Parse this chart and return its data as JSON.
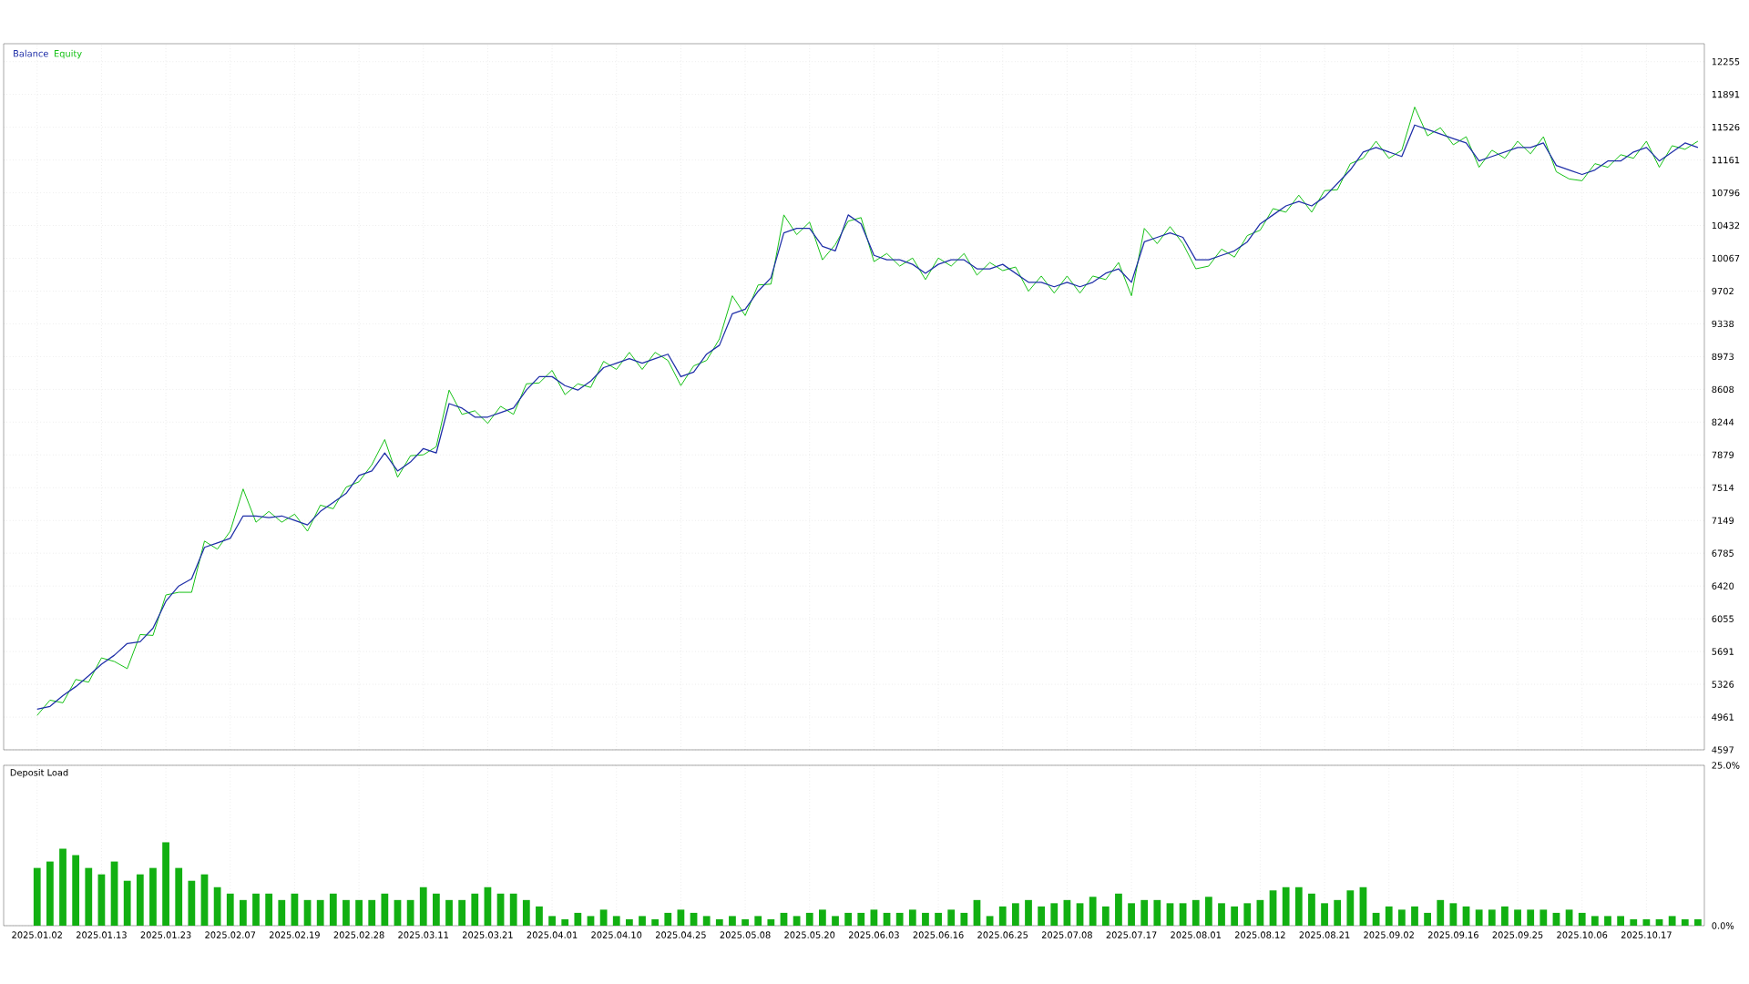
{
  "chart_data": [
    {
      "type": "line",
      "categories": [
        "2025.01.02",
        null,
        null,
        null,
        null,
        "2025.01.13",
        null,
        null,
        null,
        null,
        "2025.01.23",
        null,
        null,
        null,
        null,
        "2025.02.07",
        null,
        null,
        null,
        null,
        "2025.02.19",
        null,
        null,
        null,
        null,
        "2025.02.28",
        null,
        null,
        null,
        null,
        "2025.03.11",
        null,
        null,
        null,
        null,
        "2025.03.21",
        null,
        null,
        null,
        null,
        "2025.04.01",
        null,
        null,
        null,
        null,
        "2025.04.10",
        null,
        null,
        null,
        null,
        "2025.04.25",
        null,
        null,
        null,
        null,
        "2025.05.08",
        null,
        null,
        null,
        null,
        "2025.05.20",
        null,
        null,
        null,
        null,
        "2025.06.03",
        null,
        null,
        null,
        null,
        "2025.06.16",
        null,
        null,
        null,
        null,
        "2025.06.25",
        null,
        null,
        null,
        null,
        "2025.07.08",
        null,
        null,
        null,
        null,
        "2025.07.17",
        null,
        null,
        null,
        null,
        "2025.08.01",
        null,
        null,
        null,
        null,
        "2025.08.12",
        null,
        null,
        null,
        null,
        "2025.08.21",
        null,
        null,
        null,
        null,
        "2025.09.02",
        null,
        null,
        null,
        null,
        "2025.09.16",
        null,
        null,
        null,
        null,
        "2025.09.25",
        null,
        null,
        null,
        null,
        "2025.10.06",
        null,
        null,
        null,
        null,
        "2025.10.17",
        null,
        null,
        null,
        null
      ],
      "series": [
        {
          "name": "Balance",
          "color": "#1f2fa8",
          "values": [
            5050,
            5080,
            5200,
            5300,
            5420,
            5550,
            5650,
            5780,
            5800,
            5950,
            6250,
            6420,
            6500,
            6850,
            6900,
            6950,
            7200,
            7200,
            7180,
            7200,
            7150,
            7100,
            7250,
            7350,
            7450,
            7650,
            7700,
            7900,
            7700,
            7800,
            7950,
            7900,
            8450,
            8400,
            8300,
            8300,
            8350,
            8400,
            8600,
            8750,
            8750,
            8650,
            8600,
            8700,
            8850,
            8900,
            8950,
            8900,
            8950,
            9000,
            8750,
            8800,
            9000,
            9100,
            9450,
            9500,
            9700,
            9850,
            10350,
            10400,
            10400,
            10200,
            10150,
            10550,
            10450,
            10100,
            10050,
            10050,
            10000,
            9900,
            10000,
            10050,
            10050,
            9950,
            9950,
            10000,
            9900,
            9800,
            9800,
            9750,
            9800,
            9750,
            9800,
            9900,
            9950,
            9800,
            10250,
            10300,
            10350,
            10300,
            10050,
            10050,
            10100,
            10150,
            10250,
            10450,
            10550,
            10650,
            10700,
            10650,
            10750,
            10900,
            11050,
            11250,
            11300,
            11250,
            11200,
            11550,
            11500,
            11450,
            11400,
            11350,
            11150,
            11200,
            11250,
            11300,
            11300,
            11350,
            11100,
            11050,
            11000,
            11050,
            11150,
            11150,
            11250,
            11300,
            11150,
            11250,
            11350,
            11300
          ]
        },
        {
          "name": "Equity",
          "color": "#12c012",
          "values": [
            4980,
            5150,
            5120,
            5380,
            5350,
            5620,
            5580,
            5500,
            5880,
            5870,
            6320,
            6350,
            6350,
            6920,
            6830,
            7030,
            7500,
            7130,
            7250,
            7130,
            7220,
            7030,
            7320,
            7280,
            7520,
            7580,
            7770,
            8050,
            7630,
            7870,
            7880,
            7970,
            8600,
            8330,
            8370,
            8230,
            8420,
            8330,
            8670,
            8680,
            8820,
            8550,
            8670,
            8630,
            8920,
            8830,
            9020,
            8830,
            9020,
            8930,
            8650,
            8870,
            8930,
            9170,
            9650,
            9430,
            9770,
            9780,
            10550,
            10330,
            10470,
            10050,
            10220,
            10480,
            10520,
            10030,
            10120,
            9980,
            10070,
            9830,
            10070,
            9980,
            10120,
            9880,
            10020,
            9930,
            9970,
            9700,
            9870,
            9680,
            9870,
            9680,
            9870,
            9830,
            10020,
            9650,
            10400,
            10230,
            10420,
            10230,
            9950,
            9980,
            10170,
            10080,
            10320,
            10380,
            10620,
            10580,
            10770,
            10580,
            10820,
            10830,
            11120,
            11180,
            11370,
            11180,
            11270,
            11750,
            11430,
            11520,
            11330,
            11420,
            11080,
            11270,
            11180,
            11370,
            11230,
            11420,
            11030,
            10950,
            10930,
            11120,
            11080,
            11220,
            11180,
            11370,
            11080,
            11320,
            11280,
            11370
          ]
        }
      ],
      "ylim": [
        4597,
        12455
      ],
      "yticks": [
        4597,
        4961,
        5326,
        5691,
        6055,
        6420,
        6785,
        7149,
        7514,
        7879,
        8244,
        8608,
        8973,
        9338,
        9702,
        10067,
        10432,
        10796,
        11161,
        11526,
        11891,
        12255
      ],
      "grid": true,
      "legend": "top left",
      "tick_labels": "y"
    },
    {
      "type": "bar",
      "title": "Deposit Load",
      "color": "#12b012",
      "categories": [
        "2025.01.02",
        null,
        null,
        null,
        null,
        "2025.01.13",
        null,
        null,
        null,
        null,
        "2025.01.23",
        null,
        null,
        null,
        null,
        "2025.02.07",
        null,
        null,
        null,
        null,
        "2025.02.19",
        null,
        null,
        null,
        null,
        "2025.02.28",
        null,
        null,
        null,
        null,
        "2025.03.11",
        null,
        null,
        null,
        null,
        "2025.03.21",
        null,
        null,
        null,
        null,
        "2025.04.01",
        null,
        null,
        null,
        null,
        "2025.04.10",
        null,
        null,
        null,
        null,
        "2025.04.25",
        null,
        null,
        null,
        null,
        "2025.05.08",
        null,
        null,
        null,
        null,
        "2025.05.20",
        null,
        null,
        null,
        null,
        "2025.06.03",
        null,
        null,
        null,
        null,
        "2025.06.16",
        null,
        null,
        null,
        null,
        "2025.06.25",
        null,
        null,
        null,
        null,
        "2025.07.08",
        null,
        null,
        null,
        null,
        "2025.07.17",
        null,
        null,
        null,
        null,
        "2025.08.01",
        null,
        null,
        null,
        null,
        "2025.08.12",
        null,
        null,
        null,
        null,
        "2025.08.21",
        null,
        null,
        null,
        null,
        "2025.09.02",
        null,
        null,
        null,
        null,
        "2025.09.16",
        null,
        null,
        null,
        null,
        "2025.09.25",
        null,
        null,
        null,
        null,
        "2025.10.06",
        null,
        null,
        null,
        null,
        "2025.10.17",
        null,
        null,
        null,
        null
      ],
      "values": [
        9,
        10,
        12,
        11,
        9,
        8,
        10,
        7,
        8,
        9,
        13,
        9,
        7,
        8,
        6,
        5,
        4,
        5,
        5,
        4,
        5,
        4,
        4,
        5,
        4,
        4,
        4,
        5,
        4,
        4,
        6,
        5,
        4,
        4,
        5,
        6,
        5,
        5,
        4,
        3,
        1.5,
        1,
        2,
        1.5,
        2.5,
        1.5,
        1,
        1.5,
        1,
        2,
        2.5,
        2,
        1.5,
        1,
        1.5,
        1,
        1.5,
        1,
        2,
        1.5,
        2,
        2.5,
        1.5,
        2,
        2,
        2.5,
        2,
        2,
        2.5,
        2,
        2,
        2.5,
        2,
        4,
        1.5,
        3,
        3.5,
        4,
        3,
        3.5,
        4,
        3.5,
        4.5,
        3,
        5,
        3.5,
        4,
        4,
        3.5,
        3.5,
        4,
        4.5,
        3.5,
        3,
        3.5,
        4,
        5.5,
        6,
        6,
        5,
        3.5,
        4,
        5.5,
        6,
        2,
        3,
        2.5,
        3,
        2,
        4,
        3.5,
        3,
        2.5,
        2.5,
        3,
        2.5,
        2.5,
        2.5,
        2,
        2.5,
        2,
        1.5,
        1.5,
        1.5,
        1,
        1,
        1,
        1.5,
        1,
        1
      ],
      "ylim": [
        0,
        25
      ],
      "yticks": [
        {
          "value": 0,
          "label": "0.0%"
        },
        {
          "value": 25,
          "label": "25.0%"
        }
      ],
      "grid": true
    }
  ]
}
